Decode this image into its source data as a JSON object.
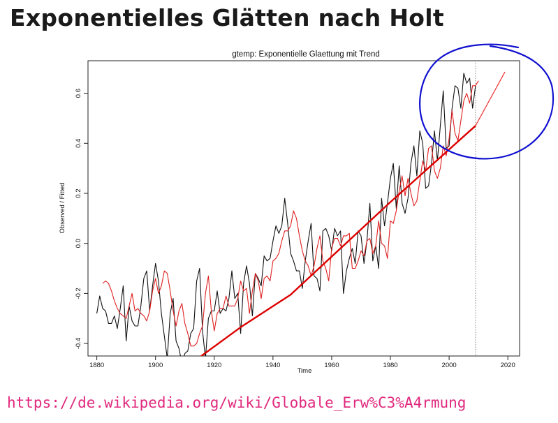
{
  "slide": {
    "title": "Exponentielles Glätten nach Holt",
    "url": "https://de.wikipedia.org/wiki/Globale_Erw%C3%A4rmung",
    "url_color": "#e0287d"
  },
  "chart_data": {
    "type": "line",
    "title": "gtemp: Exponentielle Glaettung mit Trend",
    "xlabel": "Time",
    "ylabel": "Observed / Fitted",
    "xlim": [
      1877,
      2024
    ],
    "ylim": [
      -0.45,
      0.73
    ],
    "xticks": [
      1880,
      1900,
      1920,
      1940,
      1960,
      1980,
      2000,
      2020
    ],
    "yticks": [
      -0.4,
      -0.2,
      0.0,
      0.2,
      0.4,
      0.6
    ],
    "ytick_labels": [
      "-0.4",
      "-0.2",
      "0.0",
      "0.2",
      "0.4",
      "0.6"
    ],
    "vline_x": 2009,
    "colors": {
      "observed": "#111111",
      "fitted": "#e02020",
      "trend": "#dd0000",
      "forecast": "#f03030",
      "vline": "#888888",
      "annotation": "#1010d0"
    },
    "series": [
      {
        "name": "Observed",
        "x_start": 1880,
        "values": [
          -0.28,
          -0.21,
          -0.26,
          -0.27,
          -0.32,
          -0.32,
          -0.29,
          -0.34,
          -0.26,
          -0.17,
          -0.39,
          -0.25,
          -0.31,
          -0.33,
          -0.33,
          -0.25,
          -0.14,
          -0.11,
          -0.27,
          -0.17,
          -0.08,
          -0.15,
          -0.28,
          -0.37,
          -0.46,
          -0.28,
          -0.22,
          -0.39,
          -0.42,
          -0.48,
          -0.44,
          -0.43,
          -0.36,
          -0.34,
          -0.15,
          -0.1,
          -0.35,
          -0.46,
          -0.3,
          -0.27,
          -0.27,
          -0.19,
          -0.28,
          -0.26,
          -0.27,
          -0.22,
          -0.11,
          -0.22,
          -0.2,
          -0.36,
          -0.16,
          -0.09,
          -0.16,
          -0.29,
          -0.12,
          -0.14,
          -0.17,
          -0.05,
          -0.07,
          -0.06,
          0.01,
          0.07,
          0.04,
          0.07,
          0.18,
          0.08,
          -0.04,
          -0.07,
          -0.11,
          -0.11,
          -0.18,
          -0.07,
          0.01,
          0.08,
          -0.13,
          -0.14,
          -0.19,
          0.05,
          0.06,
          0.03,
          -0.03,
          0.06,
          0.03,
          0.05,
          -0.2,
          -0.11,
          -0.06,
          -0.02,
          -0.08,
          0.05,
          0.03,
          -0.08,
          0.01,
          0.16,
          -0.07,
          -0.01,
          -0.1,
          0.18,
          0.07,
          0.16,
          0.26,
          0.32,
          0.14,
          0.31,
          0.16,
          0.12,
          0.18,
          0.32,
          0.39,
          0.27,
          0.45,
          0.4,
          0.22,
          0.23,
          0.32,
          0.45,
          0.33,
          0.47,
          0.61,
          0.38,
          0.39,
          0.54,
          0.63,
          0.62,
          0.54,
          0.68,
          0.64,
          0.66,
          0.54,
          0.63
        ],
        "description": "annual gtemp anomalies 1880-2009 (curve clipped to plot area)"
      },
      {
        "name": "Fitted",
        "x_start": 1882,
        "values": [
          -0.16,
          -0.15,
          -0.16,
          -0.19,
          -0.23,
          -0.26,
          -0.28,
          -0.29,
          -0.3,
          -0.25,
          -0.2,
          -0.27,
          -0.26,
          -0.28,
          -0.29,
          -0.31,
          -0.27,
          -0.19,
          -0.14,
          -0.2,
          -0.17,
          -0.11,
          -0.12,
          -0.19,
          -0.27,
          -0.33,
          -0.27,
          -0.24,
          -0.32,
          -0.36,
          -0.41,
          -0.41,
          -0.4,
          -0.36,
          -0.33,
          -0.2,
          -0.13,
          -0.27,
          -0.35,
          -0.28,
          -0.26,
          -0.26,
          -0.21,
          -0.25,
          -0.25,
          -0.25,
          -0.22,
          -0.15,
          -0.19,
          -0.18,
          -0.28,
          -0.19,
          -0.12,
          -0.15,
          -0.22,
          -0.14,
          -0.13,
          -0.15,
          -0.07,
          -0.06,
          -0.04,
          0.01,
          0.05,
          0.05,
          0.07,
          0.13,
          0.1,
          0.03,
          -0.03,
          -0.07,
          -0.09,
          -0.13,
          -0.09,
          -0.02,
          0.03,
          -0.07,
          -0.1,
          -0.15,
          -0.02,
          0.02,
          0.02,
          -0.01,
          0.03,
          0.03,
          0.04,
          -0.1,
          -0.1,
          -0.07,
          -0.03,
          -0.05,
          0.01,
          0.02,
          -0.04,
          -0.01,
          0.09,
          0.0,
          -0.01,
          -0.06,
          0.09,
          0.08,
          0.13,
          0.21,
          0.27,
          0.19,
          0.26,
          0.2,
          0.15,
          0.17,
          0.25,
          0.33,
          0.29,
          0.38,
          0.39,
          0.29,
          0.26,
          0.3,
          0.39,
          0.35,
          0.42,
          0.53,
          0.44,
          0.41,
          0.49,
          0.57,
          0.6,
          0.56,
          0.63,
          0.63,
          0.65
        ]
      },
      {
        "name": "Trend",
        "points": [
          [
            1915,
            -0.455
          ],
          [
            1929,
            -0.335
          ],
          [
            1946,
            -0.205
          ],
          [
            1980,
            0.165
          ],
          [
            2009,
            0.47
          ]
        ]
      },
      {
        "name": "Forecast",
        "points": [
          [
            2009,
            0.47
          ],
          [
            2019,
            0.685
          ]
        ]
      }
    ],
    "annotations": [
      {
        "type": "hand-drawn ellipse",
        "label": "circled recent warming and forecast"
      }
    ]
  }
}
